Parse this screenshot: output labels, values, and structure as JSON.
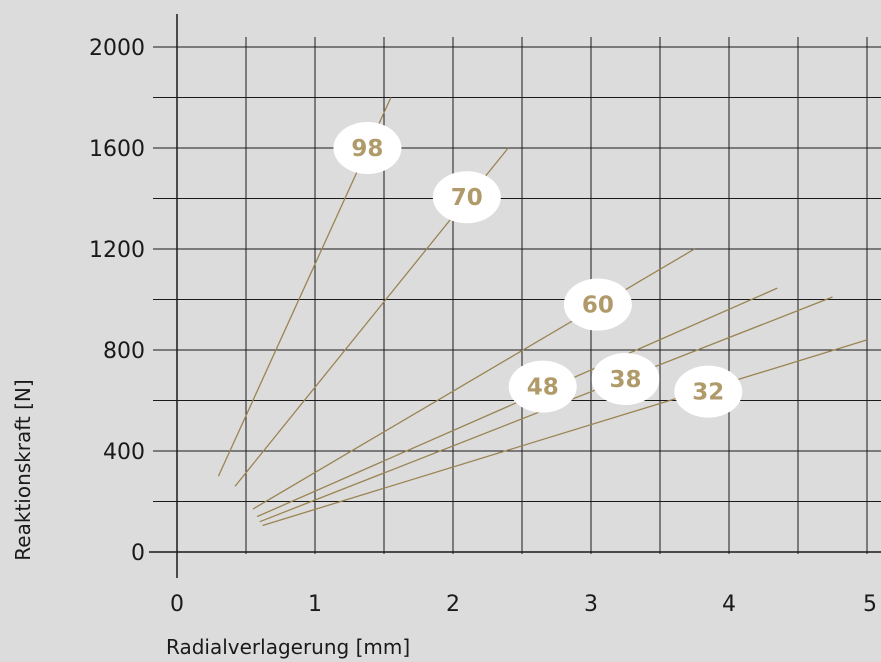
{
  "chart_data": {
    "type": "line",
    "title": "",
    "xlabel": "Radialverlagerung [mm]",
    "ylabel": "Reaktionskraft [N]",
    "xlim": [
      0,
      5
    ],
    "ylim": [
      0,
      2000
    ],
    "x_ticks": [
      0,
      1,
      2,
      3,
      4,
      5
    ],
    "y_ticks": [
      0,
      400,
      800,
      1200,
      1600,
      2000
    ],
    "x_tick_labels": [
      "0",
      "1",
      "2",
      "3",
      "4",
      "5"
    ],
    "y_tick_labels": [
      "0",
      "400",
      "800",
      "1200",
      "1600",
      "2000"
    ],
    "grid": true,
    "colors": {
      "background": "#dcdcdc",
      "grid": "#1a1a1a",
      "series_line": "#9a8453",
      "series_label": "#b09a6a",
      "label_halo": "#ffffff"
    },
    "series": [
      {
        "name": "98",
        "x": [
          0.3,
          1.55
        ],
        "y": [
          300,
          1800
        ]
      },
      {
        "name": "70",
        "x": [
          0.42,
          2.4
        ],
        "y": [
          260,
          1600
        ]
      },
      {
        "name": "60",
        "x": [
          0.55,
          3.75
        ],
        "y": [
          170,
          1200
        ]
      },
      {
        "name": "48",
        "x": [
          0.58,
          4.35
        ],
        "y": [
          140,
          1045
        ]
      },
      {
        "name": "38",
        "x": [
          0.6,
          4.75
        ],
        "y": [
          120,
          1010
        ]
      },
      {
        "name": "32",
        "x": [
          0.62,
          5.0
        ],
        "y": [
          105,
          840
        ]
      }
    ]
  }
}
